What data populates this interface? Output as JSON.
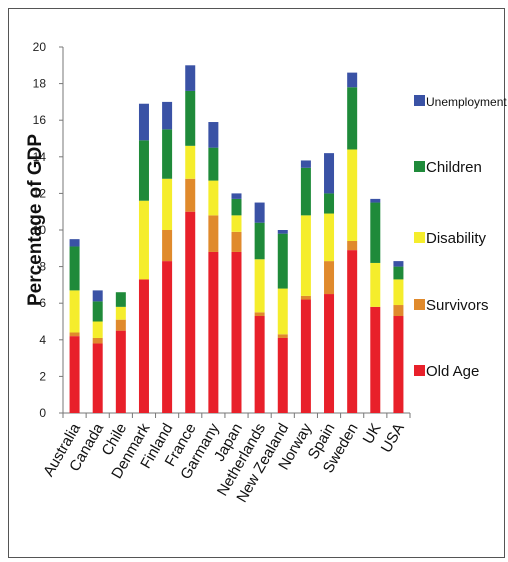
{
  "chart_data": {
    "type": "bar",
    "stacked": true,
    "title": "",
    "xlabel": "",
    "ylabel": "Percentage of GDP",
    "ylim": [
      0,
      20
    ],
    "yticks": [
      0,
      2,
      4,
      6,
      8,
      10,
      12,
      14,
      16,
      18,
      20
    ],
    "grid": false,
    "legend_position": "right",
    "categories": [
      "Australia",
      "Canada",
      "Chile",
      "Denmark",
      "Finland",
      "France",
      "Garmany",
      "Japan",
      "Netherlands",
      "New Zealand",
      "Norway",
      "Spain",
      "Sweden",
      "UK",
      "USA"
    ],
    "series": [
      {
        "name": "Old Age",
        "color": "#e8202a",
        "values": [
          4.2,
          3.8,
          4.5,
          7.3,
          8.3,
          11.0,
          8.8,
          8.8,
          5.3,
          4.1,
          6.2,
          6.5,
          8.9,
          5.8,
          5.3
        ]
      },
      {
        "name": "Survivors",
        "color": "#e08a2c",
        "values": [
          0.2,
          0.3,
          0.6,
          0.0,
          1.7,
          1.8,
          2.0,
          1.1,
          0.2,
          0.2,
          0.2,
          1.8,
          0.5,
          0.0,
          0.6
        ]
      },
      {
        "name": "Disability",
        "color": "#f5ed2c",
        "values": [
          2.3,
          0.9,
          0.7,
          4.3,
          2.8,
          1.8,
          1.9,
          0.9,
          2.9,
          2.5,
          4.4,
          2.6,
          5.0,
          2.4,
          1.4
        ]
      },
      {
        "name": "Children",
        "color": "#1f8a3a",
        "values": [
          2.4,
          1.1,
          0.8,
          3.3,
          2.7,
          3.0,
          1.8,
          0.9,
          2.0,
          3.0,
          2.6,
          1.1,
          3.4,
          3.3,
          0.7
        ]
      },
      {
        "name": "Unemployment",
        "color": "#3a52a5",
        "values": [
          0.4,
          0.6,
          0.0,
          2.0,
          1.5,
          1.4,
          1.4,
          0.3,
          1.1,
          0.2,
          0.4,
          2.2,
          0.8,
          0.2,
          0.3
        ]
      }
    ],
    "legend_order": [
      "Unemployment",
      "Children",
      "Disability",
      "Survivors",
      "Old Age"
    ]
  }
}
